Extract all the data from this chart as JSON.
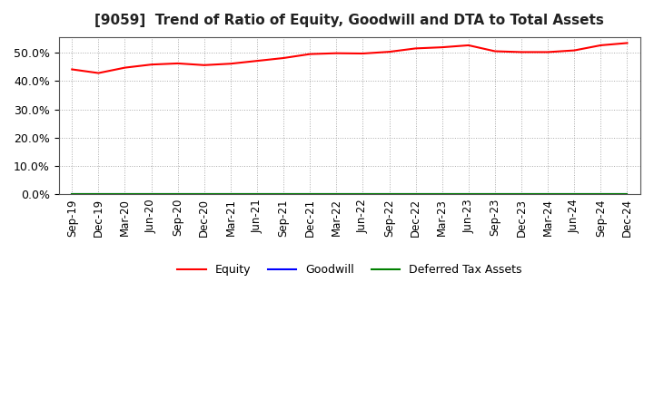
{
  "title": "[9059]  Trend of Ratio of Equity, Goodwill and DTA to Total Assets",
  "title_fontsize": 11,
  "x_labels": [
    "Sep-19",
    "Dec-19",
    "Mar-20",
    "Jun-20",
    "Sep-20",
    "Dec-20",
    "Mar-21",
    "Jun-21",
    "Sep-21",
    "Dec-21",
    "Mar-22",
    "Jun-22",
    "Sep-22",
    "Dec-22",
    "Mar-23",
    "Jun-23",
    "Sep-23",
    "Dec-23",
    "Mar-24",
    "Jun-24",
    "Sep-24",
    "Dec-24"
  ],
  "equity": [
    0.441,
    0.428,
    0.447,
    0.458,
    0.462,
    0.456,
    0.461,
    0.471,
    0.481,
    0.495,
    0.498,
    0.497,
    0.503,
    0.515,
    0.519,
    0.526,
    0.505,
    0.502,
    0.502,
    0.508,
    0.526,
    0.534
  ],
  "goodwill": [
    0.0,
    0.0,
    0.0,
    0.0,
    0.0,
    0.0,
    0.0,
    0.0,
    0.0,
    0.0,
    0.0,
    0.0,
    0.0,
    0.0,
    0.0,
    0.0,
    0.0,
    0.0,
    0.0,
    0.0,
    0.0,
    0.0
  ],
  "dta": [
    0.0,
    0.0,
    0.0,
    0.0,
    0.0,
    0.0,
    0.0,
    0.0,
    0.0,
    0.0,
    0.0,
    0.0,
    0.0,
    0.0,
    0.0,
    0.0,
    0.0,
    0.0,
    0.0,
    0.0,
    0.0,
    0.0
  ],
  "equity_color": "#ff0000",
  "goodwill_color": "#0000ff",
  "dta_color": "#008000",
  "ylim": [
    0.0,
    0.555
  ],
  "yticks": [
    0.0,
    0.1,
    0.2,
    0.3,
    0.4,
    0.5
  ],
  "background_color": "#ffffff",
  "plot_bg_color": "#ffffff",
  "grid_color": "#aaaaaa",
  "legend_labels": [
    "Equity",
    "Goodwill",
    "Deferred Tax Assets"
  ]
}
